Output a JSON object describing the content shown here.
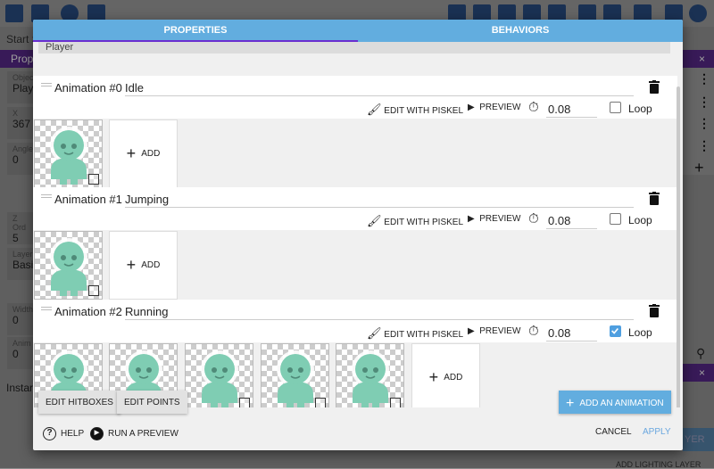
{
  "background": {
    "start_label": "Start S",
    "panel_label": "Prope",
    "fields": [
      {
        "label": "Objec",
        "value": "Play"
      },
      {
        "label": "X",
        "value": "367"
      },
      {
        "label": "Angle",
        "value": "0"
      },
      {
        "label": "Z Ord",
        "value": "5"
      },
      {
        "label": "Layer",
        "value": "Basi"
      },
      {
        "label": "Width",
        "value": "0"
      },
      {
        "label": "Anim",
        "value": "0"
      }
    ],
    "instances_label": "Instar",
    "close_label": "×",
    "add_layer_label": "ADD LIGHTING LAYER",
    "layer_btn_label": "YER"
  },
  "dialog": {
    "tabs": [
      {
        "label": "PROPERTIES",
        "active": true
      },
      {
        "label": "BEHAVIORS",
        "active": false
      }
    ],
    "object_name": "Player",
    "edit_piskel_label": "EDIT WITH PISKEL",
    "preview_label": "PREVIEW",
    "loop_label": "Loop",
    "add_label": "ADD",
    "animations": [
      {
        "label": "Animation #0",
        "name": "Idle",
        "speed": "0.08",
        "loop": false,
        "frames": 1
      },
      {
        "label": "Animation #1",
        "name": "Jumping",
        "speed": "0.08",
        "loop": false,
        "frames": 1
      },
      {
        "label": "Animation #2",
        "name": "Running",
        "speed": "0.08",
        "loop": true,
        "frames": 5
      }
    ],
    "edit_hitboxes_label": "EDIT HITBOXES",
    "edit_points_label": "EDIT POINTS",
    "add_animation_label": "ADD AN ANIMATION",
    "help_label": "HELP",
    "run_preview_label": "RUN A PREVIEW",
    "cancel_label": "CANCEL",
    "apply_label": "APPLY",
    "colors": {
      "tab_bar": "#62addf",
      "tab_indicator": "#6a2fd0",
      "checkbox_checked": "#4f9fe0",
      "sprite": "#7fcdb3"
    }
  }
}
